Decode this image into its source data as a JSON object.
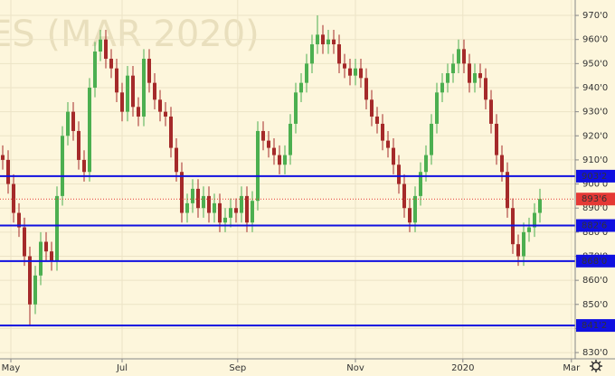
{
  "chart_data": {
    "type": "candlestick",
    "watermark": "ES (MAR 2020)",
    "up_color": "#4caf50",
    "down_color": "#a52a2a",
    "background": "#fdf6dc",
    "level_color": "#1010e0",
    "last_color": "#e53935",
    "xlim": [
      -0.5,
      105.5
    ],
    "xticks": [
      {
        "value": 1.5,
        "label": "May"
      },
      {
        "value": 22,
        "label": "Jul"
      },
      {
        "value": 43.3,
        "label": "Sep"
      },
      {
        "value": 65,
        "label": "Nov"
      },
      {
        "value": 84.8,
        "label": "2020"
      },
      {
        "value": 104.8,
        "label": "Mar"
      }
    ],
    "ylim": [
      827.4,
      976.4
    ],
    "yticks": [
      {
        "value": 830,
        "label": "830'0"
      },
      {
        "value": 840,
        "label": "840'0"
      },
      {
        "value": 850,
        "label": "850'0"
      },
      {
        "value": 860,
        "label": "860'0"
      },
      {
        "value": 870,
        "label": "870'0"
      },
      {
        "value": 880,
        "label": "880'0"
      },
      {
        "value": 890,
        "label": "890'0"
      },
      {
        "value": 900,
        "label": "900'0"
      },
      {
        "value": 910,
        "label": "910'0"
      },
      {
        "value": 920,
        "label": "920'0"
      },
      {
        "value": 930,
        "label": "930'0"
      },
      {
        "value": 940,
        "label": "940'0"
      },
      {
        "value": 950,
        "label": "950'0"
      },
      {
        "value": 960,
        "label": "960'0"
      },
      {
        "value": 970,
        "label": "970'0"
      }
    ],
    "grid": true,
    "levels": [
      {
        "value": 903.25,
        "label": "903'2"
      },
      {
        "value": 882.75,
        "label": "882'6"
      },
      {
        "value": 868,
        "label": "868'0"
      },
      {
        "value": 841.25,
        "label": "841'2"
      }
    ],
    "last_price": {
      "value": 893.75,
      "label": "893'6"
    },
    "open": [
      912,
      910,
      900,
      888,
      882,
      870,
      850,
      862,
      876,
      872,
      868,
      895,
      920,
      930,
      922,
      910,
      905,
      940,
      955,
      960,
      952,
      948,
      938,
      930,
      945,
      932,
      928,
      952,
      942,
      935,
      930,
      928,
      915,
      905,
      888,
      892,
      898,
      890,
      895,
      888,
      892,
      884,
      886,
      890,
      888,
      895,
      884,
      893,
      922,
      918,
      915,
      912,
      908,
      912,
      925,
      938,
      942,
      950,
      958,
      962,
      958,
      960,
      958,
      950,
      948,
      945,
      948,
      944,
      935,
      928,
      925,
      918,
      915,
      908,
      900,
      890,
      884,
      895,
      905,
      912,
      925,
      938,
      942,
      946,
      950,
      956,
      950,
      942,
      946,
      944,
      935,
      925,
      912,
      905,
      890,
      875,
      870,
      880,
      882,
      888
    ],
    "high": [
      916,
      914,
      904,
      892,
      886,
      874,
      866,
      880,
      880,
      876,
      899,
      924,
      934,
      934,
      926,
      914,
      944,
      959,
      964,
      964,
      956,
      952,
      942,
      949,
      949,
      936,
      956,
      956,
      946,
      939,
      934,
      932,
      919,
      909,
      896,
      902,
      902,
      899,
      899,
      896,
      896,
      890,
      894,
      894,
      899,
      899,
      897,
      926,
      926,
      922,
      919,
      916,
      916,
      929,
      942,
      946,
      954,
      962,
      970,
      966,
      964,
      964,
      962,
      954,
      952,
      952,
      952,
      948,
      939,
      932,
      929,
      922,
      919,
      912,
      904,
      894,
      899,
      909,
      916,
      929,
      942,
      946,
      950,
      954,
      960,
      960,
      954,
      950,
      950,
      948,
      939,
      929,
      916,
      909,
      894,
      879,
      884,
      886,
      892,
      898
    ],
    "low": [
      906,
      896,
      884,
      878,
      866,
      841,
      846,
      858,
      868,
      864,
      864,
      891,
      916,
      918,
      906,
      901,
      901,
      936,
      951,
      948,
      944,
      934,
      926,
      926,
      928,
      924,
      924,
      938,
      931,
      926,
      924,
      911,
      901,
      884,
      884,
      888,
      886,
      886,
      884,
      884,
      880,
      880,
      882,
      884,
      884,
      880,
      880,
      889,
      914,
      911,
      908,
      904,
      904,
      908,
      921,
      934,
      938,
      946,
      954,
      954,
      954,
      954,
      946,
      944,
      941,
      941,
      940,
      931,
      924,
      921,
      914,
      911,
      904,
      896,
      886,
      880,
      880,
      891,
      901,
      908,
      921,
      934,
      938,
      942,
      946,
      946,
      938,
      938,
      940,
      931,
      921,
      908,
      901,
      886,
      871,
      866,
      866,
      876,
      878,
      884
    ],
    "close": [
      910,
      900,
      888,
      882,
      870,
      850,
      862,
      876,
      872,
      868,
      895,
      920,
      930,
      922,
      910,
      905,
      940,
      955,
      960,
      952,
      948,
      938,
      930,
      945,
      932,
      928,
      952,
      942,
      935,
      930,
      928,
      915,
      905,
      888,
      892,
      898,
      890,
      895,
      888,
      892,
      884,
      886,
      890,
      888,
      895,
      884,
      893,
      922,
      918,
      915,
      912,
      908,
      912,
      925,
      938,
      942,
      950,
      958,
      962,
      958,
      960,
      958,
      950,
      948,
      945,
      948,
      944,
      935,
      928,
      925,
      918,
      915,
      908,
      900,
      890,
      884,
      895,
      905,
      912,
      925,
      938,
      942,
      946,
      950,
      956,
      950,
      942,
      946,
      944,
      935,
      925,
      912,
      905,
      890,
      875,
      870,
      880,
      882,
      888,
      893.75
    ]
  }
}
